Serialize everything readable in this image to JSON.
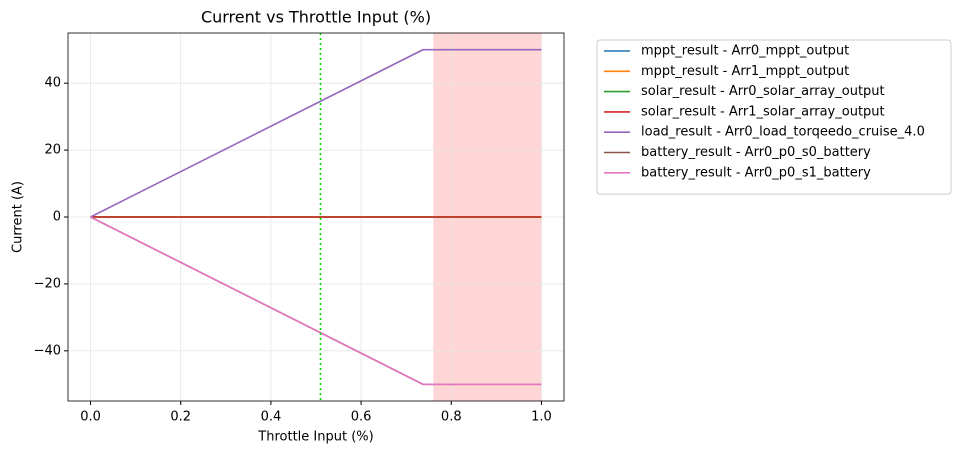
{
  "chart_data": {
    "type": "line",
    "title": "Current vs Throttle Input (%)",
    "x_label": "Throttle Input (%)",
    "y_label": "Current (A)",
    "x": [
      0,
      0.737,
      1.0
    ],
    "series": [
      {
        "name": "mppt_result - Arr0_mppt_output",
        "color": "#1f77b4",
        "values": [
          0,
          0,
          0
        ]
      },
      {
        "name": "mppt_result - Arr1_mppt_output",
        "color": "#ff7f0e",
        "values": [
          0,
          0,
          0
        ]
      },
      {
        "name": "solar_result - Arr0_solar_array_output",
        "color": "#2ca02c",
        "values": [
          0,
          0,
          0
        ]
      },
      {
        "name": "solar_result - Arr1_solar_array_output",
        "color": "#d62728",
        "values": [
          0,
          0,
          0
        ]
      },
      {
        "name": "load_result - Arr0_load_torqeedo_cruise_4.0",
        "color": "#9467bd",
        "values": [
          0,
          50,
          50
        ]
      },
      {
        "name": "battery_result - Arr0_p0_s0_battery",
        "color": "#8c564b",
        "values": [
          0,
          -50,
          -50
        ]
      },
      {
        "name": "battery_result - Arr0_p0_s1_battery",
        "color": "#e377c2",
        "values": [
          0,
          -50,
          -50
        ]
      }
    ],
    "vline": {
      "x": 0.51,
      "color": "#00dd00"
    },
    "span": {
      "x": [
        0.76,
        1.0
      ],
      "color": "#ffd6d6"
    },
    "xlim": [
      -0.05,
      1.05
    ],
    "ylim": [
      -55,
      55
    ],
    "xticks": [
      {
        "value": 0,
        "label": "0.0"
      },
      0.2,
      0.4,
      0.6,
      0.8,
      {
        "value": 1,
        "label": "1.0"
      }
    ],
    "yticks": [
      {
        "value": -40,
        "label": "−40"
      },
      {
        "value": -20,
        "label": "−20"
      },
      0,
      20,
      40
    ],
    "grid": true,
    "legend": "outside-upper-right"
  }
}
